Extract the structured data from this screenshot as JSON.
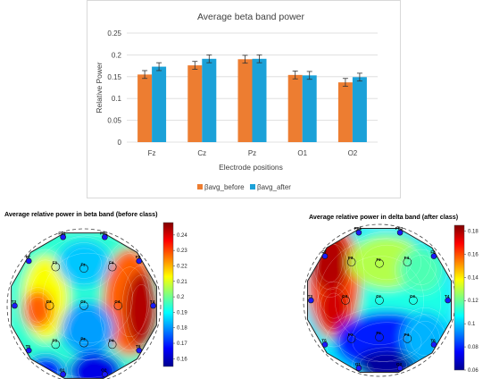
{
  "chart_data": [
    {
      "type": "bar",
      "title": "Average beta band power",
      "xlabel": "Electrode positions",
      "ylabel": "Relative Power",
      "categories": [
        "Fz",
        "Cz",
        "Pz",
        "O1",
        "O2"
      ],
      "ylim": [
        0,
        0.25
      ],
      "yticks": [
        "0",
        "0.05",
        "0.1",
        "0.15",
        "0.2",
        "0.25"
      ],
      "legend_position": "bottom",
      "series": [
        {
          "name": "βavg_before",
          "color": "#ed7d31",
          "values": [
            0.155,
            0.176,
            0.19,
            0.154,
            0.137
          ],
          "errors": [
            0.009,
            0.009,
            0.009,
            0.009,
            0.009
          ]
        },
        {
          "name": "βavg_after",
          "color": "#1ba1d8",
          "values": [
            0.173,
            0.191,
            0.191,
            0.153,
            0.149
          ],
          "errors": [
            0.009,
            0.009,
            0.009,
            0.009,
            0.009
          ]
        }
      ],
      "grid": true
    },
    {
      "type": "heatmap",
      "title": "Average relative power in beta band (before class)",
      "colorbar_ticks": [
        "0.24",
        "0.23",
        "0.22",
        "0.21",
        "0.2",
        "0.19",
        "0.18",
        "0.17",
        "0.16"
      ],
      "range": [
        0.155,
        0.248
      ],
      "electrodes": [
        "FP1",
        "FP2",
        "F7",
        "F3",
        "Fz",
        "F4",
        "F8",
        "T3",
        "C3",
        "Cz",
        "C4",
        "T4",
        "T5",
        "P3",
        "Pz",
        "P4",
        "T6",
        "O1",
        "O2"
      ]
    },
    {
      "type": "heatmap",
      "title": "Average relative power in delta band (after class)",
      "colorbar_ticks": [
        "0.18",
        "0.16",
        "0.14",
        "0.12",
        "0.1",
        "0.08",
        "0.06"
      ],
      "range": [
        0.06,
        0.185
      ],
      "electrodes": [
        "FP1",
        "FP2",
        "F7",
        "F3",
        "Fz",
        "F4",
        "F8",
        "T3",
        "C3",
        "Cz",
        "C4",
        "T4",
        "T5",
        "P3",
        "Pz",
        "P4",
        "T6",
        "O1",
        "O2"
      ]
    }
  ],
  "colors": {
    "jet_low": "#00008f",
    "jet_mid": "#7fff7f",
    "jet_high": "#800000",
    "grid": "#d9d9d9"
  }
}
